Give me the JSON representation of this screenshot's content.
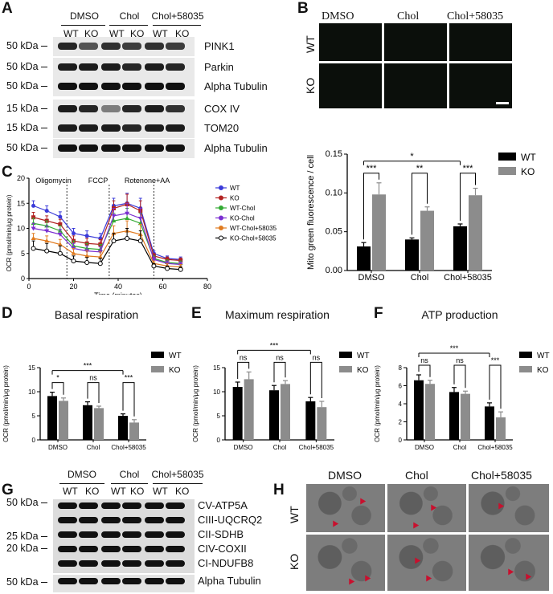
{
  "panelA": {
    "letter": "A",
    "groups": [
      "DMSO",
      "Chol",
      "Chol+58035"
    ],
    "lanes": [
      "WT",
      "KO",
      "WT",
      "KO",
      "WT",
      "KO"
    ],
    "rows": [
      {
        "kda": "50 kDa",
        "protein": "PINK1"
      },
      {
        "kda": "50 kDa",
        "protein": "Parkin"
      },
      {
        "kda": "50 kDa",
        "protein": "Alpha Tubulin"
      },
      {
        "kda": "15 kDa",
        "protein": "COX IV"
      },
      {
        "kda": "15 kDa",
        "protein": "TOM20"
      },
      {
        "kda": "50 kDa",
        "protein": "Alpha Tubulin"
      }
    ]
  },
  "panelB": {
    "letter": "B",
    "columns": [
      "DMSO",
      "Chol",
      "Chol+58035"
    ],
    "rows": [
      "WT",
      "KO"
    ],
    "chart": {
      "ylabel": "Mito green fluorescence / cell",
      "yticks": [
        "0.00",
        "0.05",
        "0.10",
        "0.15"
      ],
      "categories": [
        "DMSO",
        "Chol",
        "Chol+58035"
      ],
      "legend": [
        "WT",
        "KO"
      ],
      "sig_pairs": [
        "***",
        "**",
        "***"
      ],
      "sig_top": "*"
    }
  },
  "panelC": {
    "letter": "C",
    "ylabel": "OCR (pmol/min/μg protein)",
    "xlabel": "Time (minutes)",
    "xticks": [
      "0",
      "20",
      "40",
      "60",
      "80"
    ],
    "yticks": [
      "0",
      "5",
      "10",
      "15",
      "20"
    ],
    "annotations": [
      "Oligomycin",
      "FCCP",
      "Rotenone+AA"
    ],
    "legend": [
      "WT",
      "KO",
      "WT-Chol",
      "KO-Chol",
      "WT-Chol+58035",
      "KO-Chol+58035"
    ]
  },
  "panelD": {
    "letter": "D",
    "title": "Basal respiration",
    "sig": [
      "*",
      "ns",
      "***"
    ],
    "sig_top": "***",
    "yticks": [
      "0",
      "5",
      "10",
      "15"
    ]
  },
  "panelE": {
    "letter": "E",
    "title": "Maximum respiration",
    "sig": [
      "ns",
      "ns",
      "ns"
    ],
    "sig_top": "***",
    "yticks": [
      "0",
      "5",
      "10",
      "15"
    ]
  },
  "panelF": {
    "letter": "F",
    "title": "ATP production",
    "sig": [
      "ns",
      "ns",
      "***"
    ],
    "sig_top": "***",
    "yticks": [
      "0",
      "2",
      "4",
      "6",
      "8"
    ]
  },
  "bar_common": {
    "ylabel": "OCR (pmol/min/μg protein)",
    "categories": [
      "DMSO",
      "Chol",
      "Chol+58035"
    ],
    "legend": [
      "WT",
      "KO"
    ]
  },
  "panelG": {
    "letter": "G",
    "groups": [
      "DMSO",
      "Chol",
      "Chol+58035"
    ],
    "lanes": [
      "WT",
      "KO",
      "WT",
      "KO",
      "WT",
      "KO"
    ],
    "kda": [
      "50 kDa",
      "25 kDa",
      "20 kDa",
      "50 kDa"
    ],
    "proteins": [
      "CV-ATP5A",
      "CIII-UQCRQ2",
      "CII-SDHB",
      "CIV-COXII",
      "CI-NDUFB8",
      "Alpha Tubulin"
    ]
  },
  "panelH": {
    "letter": "H",
    "columns": [
      "DMSO",
      "Chol",
      "Chol+58035"
    ],
    "rows": [
      "WT",
      "KO"
    ]
  },
  "chart_data": [
    {
      "type": "bar",
      "panel": "B",
      "categories": [
        "DMSO",
        "Chol",
        "Chol+58035"
      ],
      "series": [
        {
          "name": "WT",
          "values": [
            0.031,
            0.04,
            0.057
          ],
          "errors": [
            0.005,
            0.002,
            0.003
          ]
        },
        {
          "name": "KO",
          "values": [
            0.098,
            0.077,
            0.097
          ],
          "errors": [
            0.015,
            0.005,
            0.009
          ]
        }
      ],
      "ylabel": "Mito green fluorescence / cell",
      "ylim": [
        0,
        0.15
      ],
      "colors": {
        "WT": "#000000",
        "KO": "#8c8c8c"
      }
    },
    {
      "type": "line",
      "panel": "C",
      "x": [
        2,
        8,
        14,
        20,
        26,
        32,
        38,
        44,
        50,
        56,
        62,
        68
      ],
      "series": [
        {
          "name": "WT",
          "values": [
            14.5,
            13.5,
            12.3,
            9.0,
            8.5,
            8.0,
            14.5,
            15.0,
            14.0,
            5.0,
            4.0,
            3.8
          ],
          "errors": [
            1.0,
            1.0,
            1.0,
            1.0,
            1.0,
            1.0,
            1.5,
            2.0,
            2.0,
            0.5,
            0.5,
            0.5
          ]
        },
        {
          "name": "KO",
          "values": [
            12.2,
            11.5,
            10.8,
            7.5,
            7.0,
            6.8,
            14.0,
            14.8,
            13.5,
            4.5,
            3.8,
            3.6
          ],
          "errors": [
            1.0,
            1.0,
            1.0,
            1.0,
            1.0,
            1.0,
            1.5,
            2.0,
            2.0,
            0.5,
            0.5,
            0.5
          ]
        },
        {
          "name": "WT-Chol",
          "values": [
            11.0,
            10.5,
            9.5,
            6.5,
            6.0,
            5.8,
            11.5,
            12.0,
            11.0,
            4.0,
            3.2,
            3.0
          ],
          "errors": [
            1.0,
            1.0,
            1.0,
            1.0,
            1.0,
            1.0,
            1.5,
            2.0,
            2.0,
            0.5,
            0.5,
            0.5
          ]
        },
        {
          "name": "KO-Chol",
          "values": [
            10.0,
            9.5,
            8.8,
            6.0,
            5.5,
            5.3,
            12.5,
            13.0,
            12.0,
            3.8,
            3.0,
            2.8
          ],
          "errors": [
            1.0,
            1.0,
            1.0,
            1.0,
            1.0,
            1.0,
            1.5,
            2.0,
            2.0,
            0.5,
            0.5,
            0.5
          ]
        },
        {
          "name": "WT-Chol+58035",
          "values": [
            8.0,
            7.5,
            6.8,
            5.0,
            4.5,
            4.3,
            9.0,
            9.5,
            8.8,
            3.0,
            2.5,
            2.3
          ],
          "errors": [
            1.0,
            1.0,
            1.0,
            1.0,
            1.0,
            1.0,
            1.5,
            2.0,
            2.0,
            0.5,
            0.5,
            0.5
          ]
        },
        {
          "name": "KO-Chol+58035",
          "values": [
            6.0,
            5.5,
            5.0,
            3.5,
            3.2,
            3.0,
            7.5,
            8.0,
            7.5,
            2.5,
            2.0,
            1.8
          ],
          "errors": [
            1.5,
            1.5,
            1.5,
            1.0,
            1.0,
            1.0,
            1.5,
            2.0,
            2.0,
            0.5,
            0.5,
            0.5
          ]
        }
      ],
      "colors": {
        "WT": "#3a3ad9",
        "KO": "#b22222",
        "WT-Chol": "#33aa33",
        "KO-Chol": "#7b2fd1",
        "WT-Chol+58035": "#e07b20",
        "KO-Chol+58035": "#000000"
      },
      "xlabel": "Time (minutes)",
      "ylabel": "OCR (pmol/min/μg protein)",
      "xlim": [
        0,
        80
      ],
      "ylim": [
        0,
        20
      ]
    },
    {
      "type": "bar",
      "panel": "D",
      "title": "Basal respiration",
      "categories": [
        "DMSO",
        "Chol",
        "Chol+58035"
      ],
      "series": [
        {
          "name": "WT",
          "values": [
            9.1,
            7.2,
            5.0
          ],
          "errors": [
            0.8,
            0.7,
            0.4
          ]
        },
        {
          "name": "KO",
          "values": [
            8.1,
            6.6,
            3.6
          ],
          "errors": [
            0.6,
            0.4,
            0.6
          ]
        }
      ],
      "ylim": [
        0,
        15
      ]
    },
    {
      "type": "bar",
      "panel": "E",
      "title": "Maximum respiration",
      "categories": [
        "DMSO",
        "Chol",
        "Chol+58035"
      ],
      "series": [
        {
          "name": "WT",
          "values": [
            11.0,
            10.3,
            8.0
          ],
          "errors": [
            1.0,
            1.0,
            0.8
          ]
        },
        {
          "name": "KO",
          "values": [
            12.6,
            11.6,
            6.8
          ],
          "errors": [
            1.5,
            0.7,
            1.2
          ]
        }
      ],
      "ylim": [
        0,
        15
      ]
    },
    {
      "type": "bar",
      "panel": "F",
      "title": "ATP production",
      "categories": [
        "DMSO",
        "Chol",
        "Chol+58035"
      ],
      "series": [
        {
          "name": "WT",
          "values": [
            6.6,
            5.3,
            3.7
          ],
          "errors": [
            0.6,
            0.5,
            0.4
          ]
        },
        {
          "name": "KO",
          "values": [
            6.2,
            5.1,
            2.5
          ],
          "errors": [
            0.4,
            0.3,
            0.6
          ]
        }
      ],
      "ylim": [
        0,
        8
      ]
    }
  ]
}
